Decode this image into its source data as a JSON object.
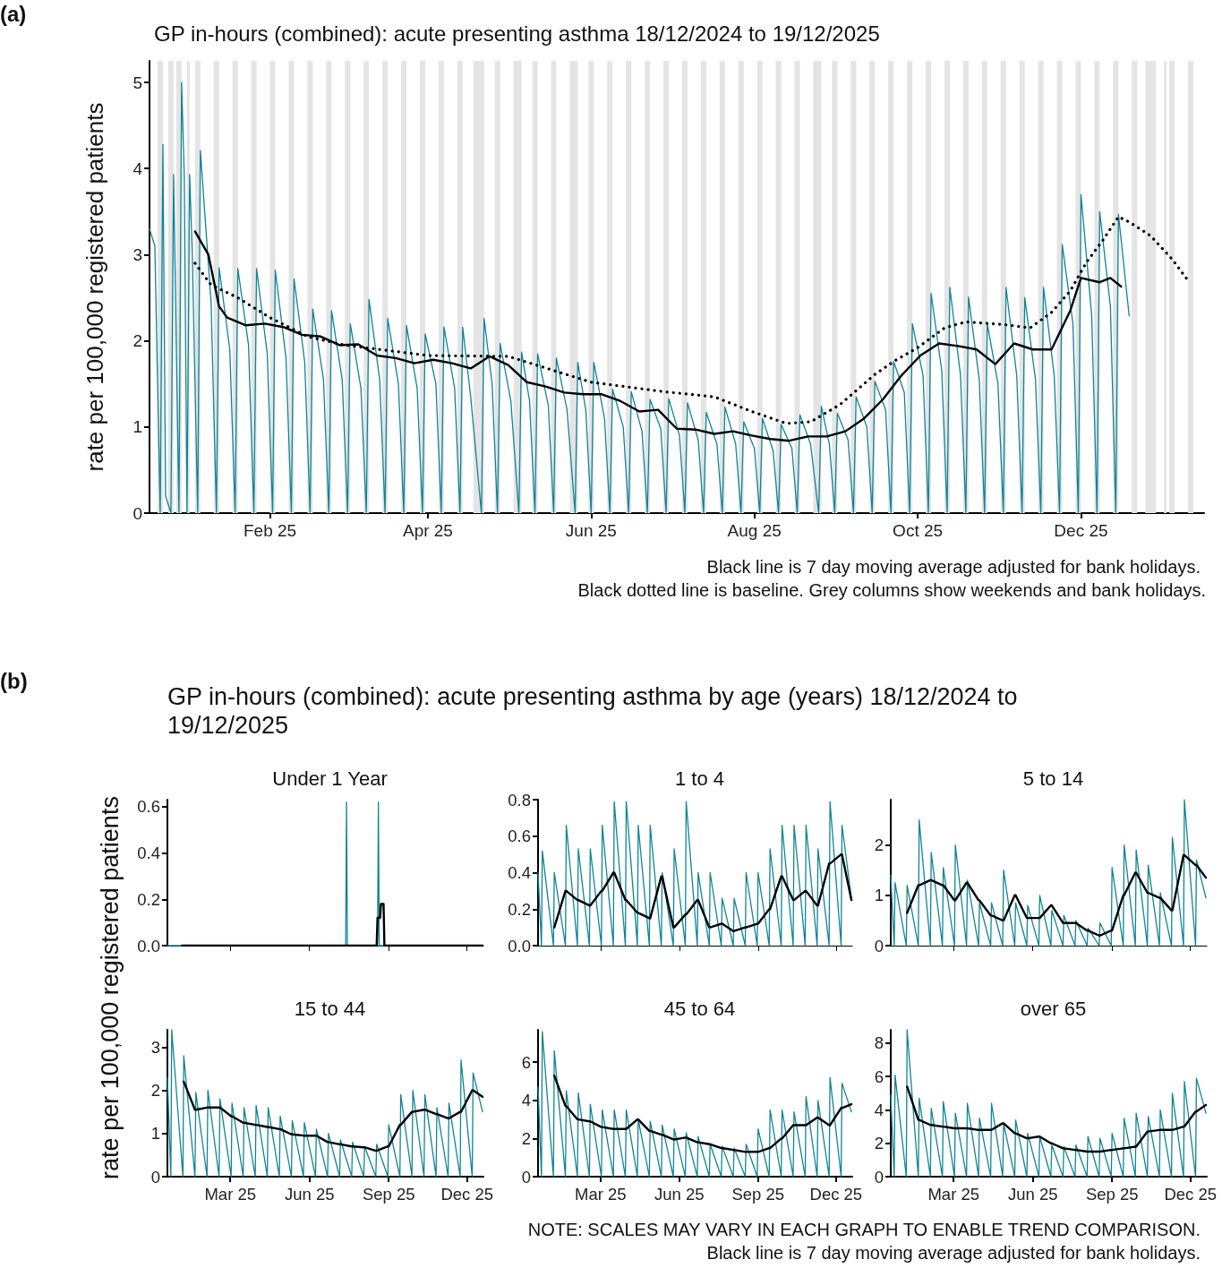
{
  "chart_data": [
    {
      "type": "line",
      "title": "GP in-hours (combined): acute presenting asthma 18/12/2024 to 19/12/2025",
      "ylabel": "rate per 100,000 registered patients",
      "annotations": [
        "(a)",
        "Black line is 7 day moving average adjusted for bank holidays.",
        "Black dotted line is baseline. Grey columns show weekends and bank holidays."
      ],
      "xlim": [
        "2024-12-18",
        "2026-01-16"
      ],
      "xticks": [
        {
          "value": "2025-02-01",
          "label": "Feb 25"
        },
        {
          "value": "2025-04-01",
          "label": "Apr 25"
        },
        {
          "value": "2025-06-01",
          "label": "Jun 25"
        },
        {
          "value": "2025-08-01",
          "label": "Aug 25"
        },
        {
          "value": "2025-10-01",
          "label": "Oct 25"
        },
        {
          "value": "2025-12-01",
          "label": "Dec 25"
        }
      ],
      "ylim": [
        0,
        5.25
      ],
      "yticks": [
        0,
        1,
        2,
        3,
        4,
        5
      ],
      "marker": "none",
      "series": [
        {
          "color": "#0f8496",
          "x": [
            "2024-12-18",
            "2024-12-20",
            "2024-12-22",
            "2024-12-23",
            "2024-12-24",
            "2024-12-26",
            "2024-12-27",
            "2024-12-29",
            "2024-12-30",
            "2024-12-31",
            "2025-01-01",
            "2025-01-02",
            "2025-01-03",
            "2025-01-05",
            "2025-01-06",
            "2025-01-10",
            "2025-01-12",
            "2025-01-13",
            "2025-01-17",
            "2025-01-19",
            "2025-01-20",
            "2025-01-24",
            "2025-01-26",
            "2025-01-27",
            "2025-01-31",
            "2025-02-02",
            "2025-02-03",
            "2025-02-07",
            "2025-02-09",
            "2025-02-10",
            "2025-02-14",
            "2025-02-16",
            "2025-02-17",
            "2025-02-21",
            "2025-02-23",
            "2025-02-24",
            "2025-02-28",
            "2025-03-02",
            "2025-03-03",
            "2025-03-07",
            "2025-03-09",
            "2025-03-10",
            "2025-03-14",
            "2025-03-16",
            "2025-03-17",
            "2025-03-21",
            "2025-03-23",
            "2025-03-24",
            "2025-03-28",
            "2025-03-30",
            "2025-03-31",
            "2025-04-04",
            "2025-04-06",
            "2025-04-07",
            "2025-04-11",
            "2025-04-13",
            "2025-04-14",
            "2025-04-17",
            "2025-04-21",
            "2025-04-22",
            "2025-04-25",
            "2025-04-27",
            "2025-04-28",
            "2025-05-02",
            "2025-05-05",
            "2025-05-06",
            "2025-05-09",
            "2025-05-11",
            "2025-05-12",
            "2025-05-16",
            "2025-05-18",
            "2025-05-19",
            "2025-05-23",
            "2025-05-26",
            "2025-05-27",
            "2025-05-30",
            "2025-06-01",
            "2025-06-02",
            "2025-06-06",
            "2025-06-08",
            "2025-06-09",
            "2025-06-13",
            "2025-06-15",
            "2025-06-16",
            "2025-06-20",
            "2025-06-22",
            "2025-06-23",
            "2025-06-27",
            "2025-06-29",
            "2025-06-30",
            "2025-07-04",
            "2025-07-06",
            "2025-07-07",
            "2025-07-11",
            "2025-07-13",
            "2025-07-14",
            "2025-07-18",
            "2025-07-20",
            "2025-07-21",
            "2025-07-25",
            "2025-07-27",
            "2025-07-28",
            "2025-08-01",
            "2025-08-03",
            "2025-08-04",
            "2025-08-08",
            "2025-08-10",
            "2025-08-11",
            "2025-08-15",
            "2025-08-17",
            "2025-08-18",
            "2025-08-22",
            "2025-08-25",
            "2025-08-26",
            "2025-08-29",
            "2025-08-31",
            "2025-09-01",
            "2025-09-05",
            "2025-09-07",
            "2025-09-08",
            "2025-09-12",
            "2025-09-14",
            "2025-09-15",
            "2025-09-19",
            "2025-09-21",
            "2025-09-22",
            "2025-09-26",
            "2025-09-28",
            "2025-09-29",
            "2025-10-03",
            "2025-10-05",
            "2025-10-06",
            "2025-10-10",
            "2025-10-12",
            "2025-10-13",
            "2025-10-17",
            "2025-10-19",
            "2025-10-20",
            "2025-10-24",
            "2025-10-26",
            "2025-10-27",
            "2025-10-31",
            "2025-11-02",
            "2025-11-03",
            "2025-11-07",
            "2025-11-09",
            "2025-11-10",
            "2025-11-14",
            "2025-11-16",
            "2025-11-17",
            "2025-11-21",
            "2025-11-23",
            "2025-11-24",
            "2025-11-28",
            "2025-11-30",
            "2025-12-01",
            "2025-12-05",
            "2025-12-07",
            "2025-12-08",
            "2025-12-12",
            "2025-12-14",
            "2025-12-15",
            "2025-12-19"
          ],
          "values": [
            3.3,
            3.1,
            0,
            4.28,
            0.2,
            0,
            3.93,
            0,
            5.0,
            3.9,
            0,
            3.93,
            3.0,
            0,
            4.21,
            2.45,
            0,
            2.85,
            1.9,
            0,
            2.84,
            1.95,
            0,
            2.84,
            1.85,
            0,
            2.82,
            1.8,
            0,
            2.72,
            1.75,
            0,
            2.37,
            1.55,
            0,
            2.35,
            1.55,
            0,
            2.2,
            1.45,
            0,
            2.48,
            1.55,
            0,
            2.26,
            1.5,
            0,
            2.18,
            1.45,
            0,
            2.08,
            1.5,
            0,
            2.16,
            1.45,
            0,
            2.16,
            1.35,
            0,
            2.26,
            1.5,
            0,
            1.97,
            1.3,
            0,
            1.87,
            1.3,
            0,
            1.85,
            1.25,
            0,
            1.8,
            1.2,
            0,
            1.75,
            1.2,
            0,
            1.75,
            1.1,
            0,
            1.44,
            1.0,
            0,
            1.41,
            0.95,
            0,
            1.32,
            0.98,
            0,
            1.33,
            0.9,
            0,
            1.28,
            0.85,
            0,
            1.17,
            0.8,
            0,
            1.23,
            0.8,
            0,
            1.06,
            0.75,
            0,
            1.1,
            0.72,
            0,
            1.03,
            0.75,
            0,
            1.14,
            0.8,
            0,
            1.24,
            0.8,
            0,
            1.16,
            0.85,
            0,
            1.35,
            1.0,
            0,
            1.53,
            1.2,
            0,
            1.76,
            1.4,
            0,
            2.2,
            1.6,
            0,
            2.55,
            1.65,
            0,
            2.62,
            1.6,
            0,
            2.51,
            1.55,
            0,
            2.2,
            1.5,
            0,
            2.62,
            1.6,
            0,
            2.5,
            1.55,
            0,
            2.62,
            1.6,
            0,
            3.12,
            2.2,
            0,
            3.7,
            2.3,
            0,
            3.5,
            2.4,
            0,
            3.47,
            2.29
          ]
        },
        {
          "color": "#000000",
          "x": [
            "2025-01-04",
            "2025-01-09",
            "2025-01-13",
            "2025-01-16",
            "2025-01-23",
            "2025-01-30",
            "2025-02-06",
            "2025-02-13",
            "2025-02-20",
            "2025-02-27",
            "2025-03-06",
            "2025-03-13",
            "2025-03-20",
            "2025-03-27",
            "2025-04-03",
            "2025-04-10",
            "2025-04-17",
            "2025-04-24",
            "2025-05-01",
            "2025-05-08",
            "2025-05-15",
            "2025-05-22",
            "2025-05-29",
            "2025-06-05",
            "2025-06-12",
            "2025-06-19",
            "2025-06-26",
            "2025-07-03",
            "2025-07-10",
            "2025-07-17",
            "2025-07-24",
            "2025-07-31",
            "2025-08-07",
            "2025-08-14",
            "2025-08-21",
            "2025-08-28",
            "2025-09-04",
            "2025-09-11",
            "2025-09-18",
            "2025-09-25",
            "2025-10-02",
            "2025-10-09",
            "2025-10-16",
            "2025-10-23",
            "2025-10-30",
            "2025-11-06",
            "2025-11-13",
            "2025-11-20",
            "2025-11-27",
            "2025-12-01",
            "2025-12-08",
            "2025-12-12",
            "2025-12-16"
          ],
          "values": [
            3.27,
            3.0,
            2.4,
            2.27,
            2.18,
            2.2,
            2.16,
            2.07,
            2.05,
            1.95,
            1.96,
            1.83,
            1.8,
            1.74,
            1.78,
            1.74,
            1.68,
            1.82,
            1.72,
            1.52,
            1.47,
            1.4,
            1.38,
            1.38,
            1.3,
            1.18,
            1.2,
            0.98,
            0.97,
            0.92,
            0.95,
            0.9,
            0.86,
            0.84,
            0.89,
            0.89,
            0.95,
            1.1,
            1.32,
            1.6,
            1.83,
            1.97,
            1.94,
            1.9,
            1.73,
            1.97,
            1.9,
            1.9,
            2.35,
            2.73,
            2.68,
            2.73,
            2.63
          ]
        },
        {
          "color": "#000000",
          "line_style": "dotted",
          "x": [
            "2025-01-04",
            "2025-01-10",
            "2025-01-20",
            "2025-02-01",
            "2025-02-15",
            "2025-03-01",
            "2025-04-01",
            "2025-05-01",
            "2025-06-01",
            "2025-06-28",
            "2025-07-17",
            "2025-07-31",
            "2025-08-13",
            "2025-08-22",
            "2025-09-02",
            "2025-09-15",
            "2025-09-23",
            "2025-10-01",
            "2025-10-11",
            "2025-10-19",
            "2025-11-02",
            "2025-11-12",
            "2025-11-20",
            "2025-11-27",
            "2025-12-03",
            "2025-12-09",
            "2025-12-15",
            "2025-12-19",
            "2025-12-27",
            "2026-01-04",
            "2026-01-10"
          ],
          "values": [
            2.9,
            2.65,
            2.5,
            2.27,
            2.05,
            1.95,
            1.83,
            1.82,
            1.52,
            1.41,
            1.35,
            1.18,
            1.04,
            1.06,
            1.26,
            1.61,
            1.78,
            1.92,
            2.15,
            2.22,
            2.19,
            2.15,
            2.33,
            2.58,
            2.91,
            3.16,
            3.44,
            3.38,
            3.22,
            2.95,
            2.7
          ]
        }
      ],
      "bands": [
        {
          "axis": "x",
          "from": "2024-12-21",
          "to": "2024-12-23"
        },
        {
          "axis": "x",
          "from": "2024-12-25",
          "to": "2024-12-27"
        },
        {
          "axis": "x",
          "from": "2024-12-28",
          "to": "2024-12-30"
        },
        {
          "axis": "x",
          "from": "2025-01-01",
          "to": "2025-01-02"
        },
        {
          "axis": "x",
          "from": "2025-01-04",
          "to": "2025-01-06"
        },
        {
          "axis": "x",
          "from": "2025-01-11",
          "to": "2025-01-13"
        },
        {
          "axis": "x",
          "from": "2025-01-18",
          "to": "2025-01-20"
        },
        {
          "axis": "x",
          "from": "2025-01-25",
          "to": "2025-01-27"
        },
        {
          "axis": "x",
          "from": "2025-02-01",
          "to": "2025-02-03"
        },
        {
          "axis": "x",
          "from": "2025-02-08",
          "to": "2025-02-10"
        },
        {
          "axis": "x",
          "from": "2025-02-15",
          "to": "2025-02-17"
        },
        {
          "axis": "x",
          "from": "2025-02-22",
          "to": "2025-02-24"
        },
        {
          "axis": "x",
          "from": "2025-03-01",
          "to": "2025-03-03"
        },
        {
          "axis": "x",
          "from": "2025-03-08",
          "to": "2025-03-10"
        },
        {
          "axis": "x",
          "from": "2025-03-15",
          "to": "2025-03-17"
        },
        {
          "axis": "x",
          "from": "2025-03-22",
          "to": "2025-03-24"
        },
        {
          "axis": "x",
          "from": "2025-03-29",
          "to": "2025-03-31"
        },
        {
          "axis": "x",
          "from": "2025-04-05",
          "to": "2025-04-07"
        },
        {
          "axis": "x",
          "from": "2025-04-12",
          "to": "2025-04-14"
        },
        {
          "axis": "x",
          "from": "2025-04-18",
          "to": "2025-04-22"
        },
        {
          "axis": "x",
          "from": "2025-04-26",
          "to": "2025-04-28"
        },
        {
          "axis": "x",
          "from": "2025-05-03",
          "to": "2025-05-06"
        },
        {
          "axis": "x",
          "from": "2025-05-10",
          "to": "2025-05-12"
        },
        {
          "axis": "x",
          "from": "2025-05-17",
          "to": "2025-05-19"
        },
        {
          "axis": "x",
          "from": "2025-05-24",
          "to": "2025-05-27"
        },
        {
          "axis": "x",
          "from": "2025-05-31",
          "to": "2025-06-02"
        },
        {
          "axis": "x",
          "from": "2025-06-07",
          "to": "2025-06-09"
        },
        {
          "axis": "x",
          "from": "2025-06-14",
          "to": "2025-06-16"
        },
        {
          "axis": "x",
          "from": "2025-06-21",
          "to": "2025-06-23"
        },
        {
          "axis": "x",
          "from": "2025-06-28",
          "to": "2025-06-30"
        },
        {
          "axis": "x",
          "from": "2025-07-05",
          "to": "2025-07-07"
        },
        {
          "axis": "x",
          "from": "2025-07-12",
          "to": "2025-07-14"
        },
        {
          "axis": "x",
          "from": "2025-07-19",
          "to": "2025-07-21"
        },
        {
          "axis": "x",
          "from": "2025-07-26",
          "to": "2025-07-28"
        },
        {
          "axis": "x",
          "from": "2025-08-02",
          "to": "2025-08-04"
        },
        {
          "axis": "x",
          "from": "2025-08-09",
          "to": "2025-08-11"
        },
        {
          "axis": "x",
          "from": "2025-08-16",
          "to": "2025-08-18"
        },
        {
          "axis": "x",
          "from": "2025-08-23",
          "to": "2025-08-26"
        },
        {
          "axis": "x",
          "from": "2025-08-30",
          "to": "2025-09-01"
        },
        {
          "axis": "x",
          "from": "2025-09-06",
          "to": "2025-09-08"
        },
        {
          "axis": "x",
          "from": "2025-09-13",
          "to": "2025-09-15"
        },
        {
          "axis": "x",
          "from": "2025-09-20",
          "to": "2025-09-22"
        },
        {
          "axis": "x",
          "from": "2025-09-27",
          "to": "2025-09-29"
        },
        {
          "axis": "x",
          "from": "2025-10-04",
          "to": "2025-10-06"
        },
        {
          "axis": "x",
          "from": "2025-10-11",
          "to": "2025-10-13"
        },
        {
          "axis": "x",
          "from": "2025-10-18",
          "to": "2025-10-20"
        },
        {
          "axis": "x",
          "from": "2025-10-25",
          "to": "2025-10-27"
        },
        {
          "axis": "x",
          "from": "2025-11-01",
          "to": "2025-11-03"
        },
        {
          "axis": "x",
          "from": "2025-11-08",
          "to": "2025-11-10"
        },
        {
          "axis": "x",
          "from": "2025-11-15",
          "to": "2025-11-17"
        },
        {
          "axis": "x",
          "from": "2025-11-22",
          "to": "2025-11-24"
        },
        {
          "axis": "x",
          "from": "2025-11-29",
          "to": "2025-12-01"
        },
        {
          "axis": "x",
          "from": "2025-12-06",
          "to": "2025-12-08"
        },
        {
          "axis": "x",
          "from": "2025-12-13",
          "to": "2025-12-15"
        },
        {
          "axis": "x",
          "from": "2025-12-20",
          "to": "2025-12-22"
        },
        {
          "axis": "x",
          "from": "2025-12-25",
          "to": "2025-12-29"
        },
        {
          "axis": "x",
          "from": "2026-01-01",
          "to": "2026-01-02"
        },
        {
          "axis": "x",
          "from": "2026-01-03",
          "to": "2026-01-05"
        },
        {
          "axis": "x",
          "from": "2026-01-10",
          "to": "2026-01-12"
        }
      ]
    },
    {
      "type": "line",
      "title": "Under 1 Year",
      "ylabel": "rate per 100,000 registered patients",
      "annotations": [
        "(b)",
        "GP in-hours (combined): acute presenting asthma by age (years) 18/12/2024 to 19/12/2025"
      ],
      "xlim": [
        "2024-12-18",
        "2025-12-20"
      ],
      "xticks": [
        {
          "value": "2025-03-01",
          "label": null
        },
        {
          "value": "2025-06-01",
          "label": null
        },
        {
          "value": "2025-09-01",
          "label": null
        },
        {
          "value": "2025-12-01",
          "label": null
        }
      ],
      "ylim": [
        0,
        0.63
      ],
      "yticks": [
        {
          "value": 0,
          "label": "0.0"
        },
        0.2,
        0.4,
        0.6
      ],
      "tick_labels": "y",
      "marker": "none",
      "series": [
        {
          "color": "#0f8496",
          "x": [
            "2024-12-18",
            "2025-07-13",
            "2025-07-14",
            "2025-07-15",
            "2025-08-19",
            "2025-08-20",
            "2025-08-21",
            "2025-12-19"
          ],
          "values": [
            0,
            0,
            0.62,
            0,
            0,
            0.62,
            0,
            0
          ]
        },
        {
          "color": "#000000",
          "x": [
            "2025-01-04",
            "2025-08-18",
            "2025-08-19",
            "2025-08-22",
            "2025-08-23",
            "2025-08-26",
            "2025-08-27",
            "2025-12-19"
          ],
          "values": [
            0,
            0,
            0.12,
            0.12,
            0.18,
            0.18,
            0,
            0
          ]
        }
      ]
    },
    {
      "type": "line",
      "title": "1 to 4",
      "xlim": [
        "2024-12-18",
        "2025-12-20"
      ],
      "xticks": [
        {
          "value": "2025-03-01",
          "label": null
        },
        {
          "value": "2025-06-01",
          "label": null
        },
        {
          "value": "2025-09-01",
          "label": null
        },
        {
          "value": "2025-12-01",
          "label": null
        }
      ],
      "ylim": [
        0,
        0.8
      ],
      "yticks": [
        {
          "value": 0,
          "label": "0.0"
        },
        0.2,
        0.4,
        0.6,
        0.8
      ],
      "tick_labels": "y",
      "marker": "none",
      "x": [
        "2024-12-18",
        "2024-12-22",
        "2024-12-23",
        "2025-01-05",
        "2025-01-06",
        "2025-01-19",
        "2025-01-20",
        "2025-02-02",
        "2025-02-03",
        "2025-02-16",
        "2025-02-17",
        "2025-03-02",
        "2025-03-03",
        "2025-03-16",
        "2025-03-17",
        "2025-03-30",
        "2025-03-31",
        "2025-04-13",
        "2025-04-14",
        "2025-04-27",
        "2025-04-28",
        "2025-05-11",
        "2025-05-12",
        "2025-05-25",
        "2025-05-26",
        "2025-06-08",
        "2025-06-09",
        "2025-06-22",
        "2025-06-23",
        "2025-07-06",
        "2025-07-07",
        "2025-07-20",
        "2025-07-21",
        "2025-08-03",
        "2025-08-04",
        "2025-08-17",
        "2025-08-18",
        "2025-08-31",
        "2025-09-01",
        "2025-09-14",
        "2025-09-15",
        "2025-09-28",
        "2025-09-29",
        "2025-10-12",
        "2025-10-13",
        "2025-10-26",
        "2025-10-27",
        "2025-11-09",
        "2025-11-10",
        "2025-11-23",
        "2025-11-24",
        "2025-12-07",
        "2025-12-08",
        "2025-12-19"
      ],
      "series": [
        {
          "color": "#0f8496",
          "values": [
            0.4,
            0,
            0.52,
            0,
            0.4,
            0,
            0.66,
            0,
            0.53,
            0,
            0.53,
            0,
            0.66,
            0,
            0.79,
            0,
            0.79,
            0,
            0.66,
            0,
            0.66,
            0,
            0.4,
            0,
            0.53,
            0,
            0.79,
            0,
            0.4,
            0,
            0.4,
            0,
            0.26,
            0,
            0.26,
            0,
            0.4,
            0,
            0.4,
            0,
            0.53,
            0,
            0.66,
            0,
            0.66,
            0,
            0.66,
            0,
            0.53,
            0,
            0.79,
            0,
            0.66,
            0.26
          ]
        },
        {
          "color": "#000000",
          "values": [
            null,
            null,
            null,
            null,
            0.1,
            0.3,
            0.3,
            0.25,
            0.25,
            0.22,
            0.22,
            0.3,
            0.3,
            0.4,
            0.4,
            0.25,
            0.25,
            0.18,
            0.18,
            0.15,
            0.15,
            0.38,
            0.38,
            0.1,
            0.1,
            0.17,
            0.17,
            0.25,
            0.25,
            0.1,
            0.1,
            0.12,
            0.12,
            0.08,
            0.08,
            0.1,
            0.1,
            0.12,
            0.12,
            0.2,
            0.2,
            0.38,
            0.38,
            0.25,
            0.25,
            0.3,
            0.3,
            0.22,
            0.22,
            0.45,
            0.45,
            0.5,
            0.5,
            0.25
          ]
        }
      ]
    },
    {
      "type": "line",
      "title": "5 to 14",
      "xlim": [
        "2024-12-18",
        "2025-12-20"
      ],
      "xticks": [
        {
          "value": "2025-03-01",
          "label": null
        },
        {
          "value": "2025-06-01",
          "label": null
        },
        {
          "value": "2025-09-01",
          "label": null
        },
        {
          "value": "2025-12-01",
          "label": null
        }
      ],
      "ylim": [
        0,
        2.9
      ],
      "yticks": [
        0,
        1,
        2
      ],
      "tick_labels": "y",
      "marker": "none",
      "x": [
        "2024-12-18",
        "2024-12-22",
        "2024-12-23",
        "2025-01-05",
        "2025-01-06",
        "2025-01-19",
        "2025-01-20",
        "2025-02-02",
        "2025-02-03",
        "2025-02-16",
        "2025-02-17",
        "2025-03-02",
        "2025-03-03",
        "2025-03-16",
        "2025-03-17",
        "2025-03-30",
        "2025-03-31",
        "2025-04-13",
        "2025-04-14",
        "2025-04-27",
        "2025-04-28",
        "2025-05-11",
        "2025-05-12",
        "2025-05-25",
        "2025-05-26",
        "2025-06-08",
        "2025-06-09",
        "2025-06-22",
        "2025-06-23",
        "2025-07-06",
        "2025-07-07",
        "2025-07-20",
        "2025-07-21",
        "2025-08-03",
        "2025-08-04",
        "2025-08-17",
        "2025-08-18",
        "2025-08-31",
        "2025-09-01",
        "2025-09-14",
        "2025-09-15",
        "2025-09-28",
        "2025-09-29",
        "2025-10-12",
        "2025-10-13",
        "2025-10-26",
        "2025-10-27",
        "2025-11-09",
        "2025-11-10",
        "2025-11-23",
        "2025-11-24",
        "2025-12-07",
        "2025-12-08",
        "2025-12-19"
      ],
      "series": [
        {
          "color": "#0f8496",
          "values": [
            1.4,
            0,
            1.25,
            0,
            1.2,
            0,
            2.5,
            0,
            1.85,
            0,
            1.55,
            0,
            2.0,
            0,
            1.3,
            0,
            0.85,
            0,
            0.85,
            0,
            1.5,
            0,
            0.85,
            0,
            0.8,
            0,
            1.0,
            0,
            0.7,
            0,
            0.6,
            0,
            0.5,
            0,
            0.35,
            0,
            0.45,
            0,
            1.55,
            0,
            2.0,
            0,
            1.9,
            0,
            1.6,
            0,
            1.05,
            0,
            2.15,
            0,
            2.9,
            0,
            1.7,
            0.95
          ]
        },
        {
          "color": "#000000",
          "values": [
            null,
            null,
            null,
            null,
            0.65,
            1.2,
            1.2,
            1.3,
            1.3,
            1.2,
            1.2,
            0.9,
            0.9,
            1.25,
            1.25,
            0.9,
            0.9,
            0.6,
            0.6,
            0.5,
            0.5,
            1.0,
            1.0,
            0.55,
            0.55,
            0.55,
            0.55,
            0.8,
            0.8,
            0.45,
            0.45,
            0.45,
            0.45,
            0.3,
            0.3,
            0.2,
            0.2,
            0.3,
            0.3,
            1.0,
            1.0,
            1.45,
            1.45,
            1.05,
            1.05,
            0.95,
            0.95,
            0.7,
            0.7,
            1.8,
            1.8,
            1.6,
            1.6,
            1.35
          ]
        }
      ]
    },
    {
      "type": "line",
      "title": "15 to 44",
      "xlim": [
        "2024-12-18",
        "2025-12-20"
      ],
      "ylim": [
        0,
        3.4
      ],
      "yticks": [
        0,
        1,
        2,
        3
      ],
      "marker": "none",
      "xticks": [
        {
          "value": "2025-03-01",
          "label": "Mar 25"
        },
        {
          "value": "2025-06-01",
          "label": "Jun 25"
        },
        {
          "value": "2025-09-01",
          "label": "Sep 25"
        },
        {
          "value": "2025-12-01",
          "label": "Dec 25"
        }
      ],
      "x": [
        "2024-12-18",
        "2024-12-22",
        "2024-12-23",
        "2025-01-05",
        "2025-01-06",
        "2025-01-19",
        "2025-01-20",
        "2025-02-02",
        "2025-02-03",
        "2025-02-16",
        "2025-02-17",
        "2025-03-02",
        "2025-03-03",
        "2025-03-16",
        "2025-03-17",
        "2025-03-30",
        "2025-03-31",
        "2025-04-13",
        "2025-04-14",
        "2025-04-27",
        "2025-04-28",
        "2025-05-11",
        "2025-05-12",
        "2025-05-25",
        "2025-05-26",
        "2025-06-08",
        "2025-06-09",
        "2025-06-22",
        "2025-06-23",
        "2025-07-06",
        "2025-07-07",
        "2025-07-20",
        "2025-07-21",
        "2025-08-03",
        "2025-08-04",
        "2025-08-17",
        "2025-08-18",
        "2025-08-31",
        "2025-09-01",
        "2025-09-14",
        "2025-09-15",
        "2025-09-28",
        "2025-09-29",
        "2025-10-12",
        "2025-10-13",
        "2025-10-26",
        "2025-10-27",
        "2025-11-09",
        "2025-11-10",
        "2025-11-23",
        "2025-11-24",
        "2025-12-07",
        "2025-12-08",
        "2025-12-19"
      ],
      "series": [
        {
          "color": "#0f8496",
          "values": [
            2.3,
            0,
            3.4,
            0,
            2.8,
            0,
            1.95,
            0,
            2.0,
            0,
            1.8,
            0,
            1.7,
            0,
            1.6,
            0,
            1.65,
            0,
            1.6,
            0,
            1.4,
            0,
            1.3,
            0,
            1.25,
            0,
            1.1,
            0,
            1.0,
            0,
            0.85,
            0,
            0.8,
            0,
            0.7,
            0,
            0.75,
            0,
            1.2,
            0,
            1.9,
            0,
            2.0,
            0,
            1.9,
            0,
            1.6,
            0,
            1.7,
            0,
            2.7,
            0,
            2.4,
            1.5
          ]
        },
        {
          "color": "#000000",
          "values": [
            null,
            null,
            null,
            null,
            2.2,
            1.55,
            1.55,
            1.6,
            1.6,
            1.6,
            1.6,
            1.4,
            1.4,
            1.25,
            1.25,
            1.2,
            1.2,
            1.15,
            1.15,
            1.1,
            1.1,
            0.98,
            0.98,
            0.95,
            0.95,
            0.95,
            0.95,
            0.8,
            0.8,
            0.75,
            0.75,
            0.7,
            0.7,
            0.68,
            0.68,
            0.6,
            0.6,
            0.7,
            0.7,
            1.2,
            1.2,
            1.5,
            1.5,
            1.55,
            1.55,
            1.45,
            1.45,
            1.35,
            1.35,
            1.5,
            1.5,
            2.0,
            2.0,
            1.85
          ]
        }
      ]
    },
    {
      "type": "line",
      "title": "45 to 64",
      "xlim": [
        "2024-12-18",
        "2025-12-20"
      ],
      "ylim": [
        0,
        7.7
      ],
      "yticks": [
        0,
        2,
        4,
        6
      ],
      "marker": "none",
      "xticks": [
        {
          "value": "2025-03-01",
          "label": "Mar 25"
        },
        {
          "value": "2025-06-01",
          "label": "Jun 25"
        },
        {
          "value": "2025-09-01",
          "label": "Sep 25"
        },
        {
          "value": "2025-12-01",
          "label": "Dec 25"
        }
      ],
      "x": [
        "2024-12-18",
        "2024-12-22",
        "2024-12-23",
        "2025-01-05",
        "2025-01-06",
        "2025-01-19",
        "2025-01-20",
        "2025-02-02",
        "2025-02-03",
        "2025-02-16",
        "2025-02-17",
        "2025-03-02",
        "2025-03-03",
        "2025-03-16",
        "2025-03-17",
        "2025-03-30",
        "2025-03-31",
        "2025-04-13",
        "2025-04-14",
        "2025-04-27",
        "2025-04-28",
        "2025-05-11",
        "2025-05-12",
        "2025-05-25",
        "2025-05-26",
        "2025-06-08",
        "2025-06-09",
        "2025-06-22",
        "2025-06-23",
        "2025-07-06",
        "2025-07-07",
        "2025-07-20",
        "2025-07-21",
        "2025-08-03",
        "2025-08-04",
        "2025-08-17",
        "2025-08-18",
        "2025-08-31",
        "2025-09-01",
        "2025-09-14",
        "2025-09-15",
        "2025-09-28",
        "2025-09-29",
        "2025-10-12",
        "2025-10-13",
        "2025-10-26",
        "2025-10-27",
        "2025-11-09",
        "2025-11-10",
        "2025-11-23",
        "2025-11-24",
        "2025-12-07",
        "2025-12-08",
        "2025-12-19"
      ],
      "series": [
        {
          "color": "#0f8496",
          "values": [
            4.7,
            0,
            7.6,
            0,
            6.6,
            0,
            4.5,
            0,
            4.4,
            0,
            3.8,
            0,
            3.5,
            0,
            3.5,
            0,
            3.5,
            0,
            3.0,
            0,
            2.9,
            0,
            2.7,
            0,
            2.5,
            0,
            2.3,
            0,
            2.1,
            0,
            1.7,
            0,
            1.6,
            0,
            1.5,
            0,
            1.7,
            0,
            2.5,
            0,
            3.5,
            0,
            3.5,
            0,
            3.4,
            0,
            4.2,
            0,
            4.0,
            0,
            5.2,
            0,
            4.9,
            3.4
          ]
        },
        {
          "color": "#000000",
          "values": [
            null,
            null,
            null,
            null,
            5.3,
            3.7,
            3.7,
            3.0,
            3.0,
            2.9,
            2.9,
            2.6,
            2.6,
            2.5,
            2.5,
            2.5,
            2.5,
            3.0,
            3.0,
            2.4,
            2.4,
            2.2,
            2.2,
            1.95,
            1.95,
            2.05,
            2.05,
            1.8,
            1.8,
            1.7,
            1.7,
            1.5,
            1.5,
            1.4,
            1.4,
            1.3,
            1.3,
            1.3,
            1.3,
            1.5,
            1.5,
            2.0,
            2.0,
            2.7,
            2.7,
            2.7,
            2.7,
            3.1,
            3.1,
            2.7,
            2.7,
            3.6,
            3.6,
            3.8
          ]
        }
      ]
    },
    {
      "type": "line",
      "title": "over 65",
      "xlim": [
        "2024-12-18",
        "2025-12-20"
      ],
      "ylim": [
        0,
        8.8
      ],
      "yticks": [
        0,
        2,
        4,
        6,
        8
      ],
      "marker": "none",
      "annotations": [
        "NOTE: SCALES MAY VARY IN EACH GRAPH TO ENABLE TREND COMPARISON.",
        "Black line is 7 day moving average adjusted for bank holidays."
      ],
      "xticks": [
        {
          "value": "2025-03-01",
          "label": "Mar 25"
        },
        {
          "value": "2025-06-01",
          "label": "Jun 25"
        },
        {
          "value": "2025-09-01",
          "label": "Sep 25"
        },
        {
          "value": "2025-12-01",
          "label": "Dec 25"
        }
      ],
      "x": [
        "2024-12-18",
        "2024-12-22",
        "2024-12-23",
        "2025-01-05",
        "2025-01-06",
        "2025-01-19",
        "2025-01-20",
        "2025-02-02",
        "2025-02-03",
        "2025-02-16",
        "2025-02-17",
        "2025-03-02",
        "2025-03-03",
        "2025-03-16",
        "2025-03-17",
        "2025-03-30",
        "2025-03-31",
        "2025-04-13",
        "2025-04-14",
        "2025-04-27",
        "2025-04-28",
        "2025-05-11",
        "2025-05-12",
        "2025-05-25",
        "2025-05-26",
        "2025-06-08",
        "2025-06-09",
        "2025-06-22",
        "2025-06-23",
        "2025-07-06",
        "2025-07-07",
        "2025-07-20",
        "2025-07-21",
        "2025-08-03",
        "2025-08-04",
        "2025-08-17",
        "2025-08-18",
        "2025-08-31",
        "2025-09-01",
        "2025-09-14",
        "2025-09-15",
        "2025-09-28",
        "2025-09-29",
        "2025-10-12",
        "2025-10-13",
        "2025-10-26",
        "2025-10-27",
        "2025-11-09",
        "2025-11-10",
        "2025-11-23",
        "2025-11-24",
        "2025-12-07",
        "2025-12-08",
        "2025-12-19"
      ],
      "series": [
        {
          "color": "#0f8496",
          "values": [
            4.9,
            0,
            6.1,
            0,
            8.8,
            0,
            4.7,
            0,
            4.1,
            0,
            4.5,
            0,
            3.8,
            0,
            4.4,
            0,
            3.5,
            0,
            4.4,
            0,
            3.2,
            0,
            3.4,
            0,
            2.6,
            0,
            2.4,
            0,
            1.9,
            0,
            1.8,
            0,
            1.9,
            0,
            2.4,
            0,
            2.3,
            0,
            2.6,
            0,
            3.5,
            0,
            3.8,
            0,
            3.6,
            0,
            4.0,
            0,
            5.0,
            0,
            5.7,
            0,
            5.9,
            3.8
          ]
        },
        {
          "color": "#000000",
          "values": [
            null,
            null,
            null,
            null,
            5.4,
            3.4,
            3.4,
            3.1,
            3.1,
            3.0,
            3.0,
            2.9,
            2.9,
            2.9,
            2.9,
            2.8,
            2.8,
            2.8,
            2.8,
            3.2,
            3.2,
            2.6,
            2.6,
            2.3,
            2.3,
            2.4,
            2.4,
            2.0,
            2.0,
            1.7,
            1.7,
            1.6,
            1.6,
            1.5,
            1.5,
            1.5,
            1.5,
            1.6,
            1.6,
            1.7,
            1.7,
            1.8,
            1.8,
            2.7,
            2.7,
            2.8,
            2.8,
            2.8,
            2.8,
            3.0,
            3.0,
            3.9,
            3.9,
            4.3
          ]
        }
      ]
    }
  ]
}
